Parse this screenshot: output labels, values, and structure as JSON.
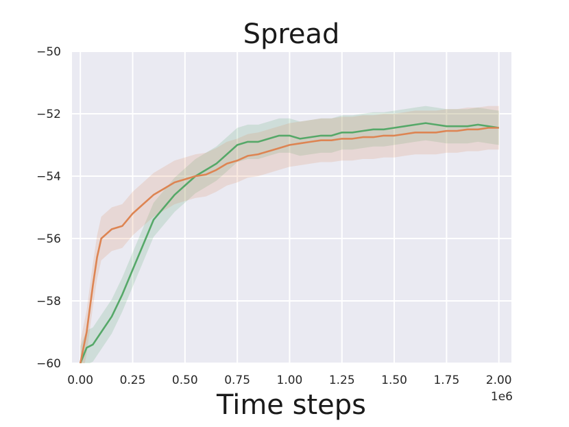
{
  "chart_data": {
    "type": "line",
    "title": "Spread",
    "xlabel": "Time steps",
    "ylabel": "",
    "x_offset_label": "1e6",
    "xlim": [
      -0.04,
      2.06
    ],
    "ylim": [
      -60,
      -50
    ],
    "xticks": [
      0.0,
      0.25,
      0.5,
      0.75,
      1.0,
      1.25,
      1.5,
      1.75,
      2.0
    ],
    "xtick_labels": [
      "0.00",
      "0.25",
      "0.50",
      "0.75",
      "1.00",
      "1.25",
      "1.50",
      "1.75",
      "2.00"
    ],
    "yticks": [
      -60,
      -58,
      -56,
      -54,
      -52,
      -50
    ],
    "ytick_labels": [
      "−60",
      "−58",
      "−56",
      "−54",
      "−52",
      "−50"
    ],
    "grid": true,
    "background": "#eaeaf2",
    "series": [
      {
        "color": "#55a868",
        "band_halfwidth": 0.55,
        "x": [
          0.0,
          0.03,
          0.06,
          0.1,
          0.15,
          0.2,
          0.25,
          0.3,
          0.35,
          0.4,
          0.45,
          0.5,
          0.55,
          0.6,
          0.65,
          0.7,
          0.75,
          0.8,
          0.85,
          0.9,
          0.95,
          1.0,
          1.05,
          1.1,
          1.15,
          1.2,
          1.25,
          1.3,
          1.35,
          1.4,
          1.45,
          1.5,
          1.55,
          1.6,
          1.65,
          1.7,
          1.75,
          1.8,
          1.85,
          1.9,
          1.95,
          2.0
        ],
        "y": [
          -60.0,
          -59.5,
          -59.4,
          -59.0,
          -58.5,
          -57.8,
          -57.0,
          -56.2,
          -55.4,
          -55.0,
          -54.6,
          -54.3,
          -54.0,
          -53.8,
          -53.6,
          -53.3,
          -53.0,
          -52.9,
          -52.9,
          -52.8,
          -52.7,
          -52.7,
          -52.8,
          -52.75,
          -52.7,
          -52.7,
          -52.6,
          -52.6,
          -52.55,
          -52.5,
          -52.5,
          -52.45,
          -52.4,
          -52.35,
          -52.3,
          -52.35,
          -52.4,
          -52.4,
          -52.4,
          -52.35,
          -52.4,
          -52.45
        ]
      },
      {
        "color": "#dd8452",
        "band_halfwidth": 0.7,
        "x": [
          0.0,
          0.03,
          0.06,
          0.08,
          0.1,
          0.15,
          0.2,
          0.25,
          0.3,
          0.35,
          0.4,
          0.45,
          0.5,
          0.55,
          0.6,
          0.65,
          0.7,
          0.75,
          0.8,
          0.85,
          0.9,
          0.95,
          1.0,
          1.05,
          1.1,
          1.15,
          1.2,
          1.25,
          1.3,
          1.35,
          1.4,
          1.45,
          1.5,
          1.55,
          1.6,
          1.65,
          1.7,
          1.75,
          1.8,
          1.85,
          1.9,
          1.95,
          2.0
        ],
        "y": [
          -60.0,
          -59.0,
          -57.5,
          -56.6,
          -56.0,
          -55.7,
          -55.6,
          -55.2,
          -54.9,
          -54.6,
          -54.4,
          -54.2,
          -54.1,
          -54.0,
          -53.95,
          -53.8,
          -53.6,
          -53.5,
          -53.35,
          -53.3,
          -53.2,
          -53.1,
          -53.0,
          -52.95,
          -52.9,
          -52.85,
          -52.85,
          -52.8,
          -52.8,
          -52.75,
          -52.75,
          -52.7,
          -52.7,
          -52.65,
          -52.6,
          -52.6,
          -52.6,
          -52.55,
          -52.55,
          -52.5,
          -52.5,
          -52.45,
          -52.45
        ]
      }
    ]
  }
}
